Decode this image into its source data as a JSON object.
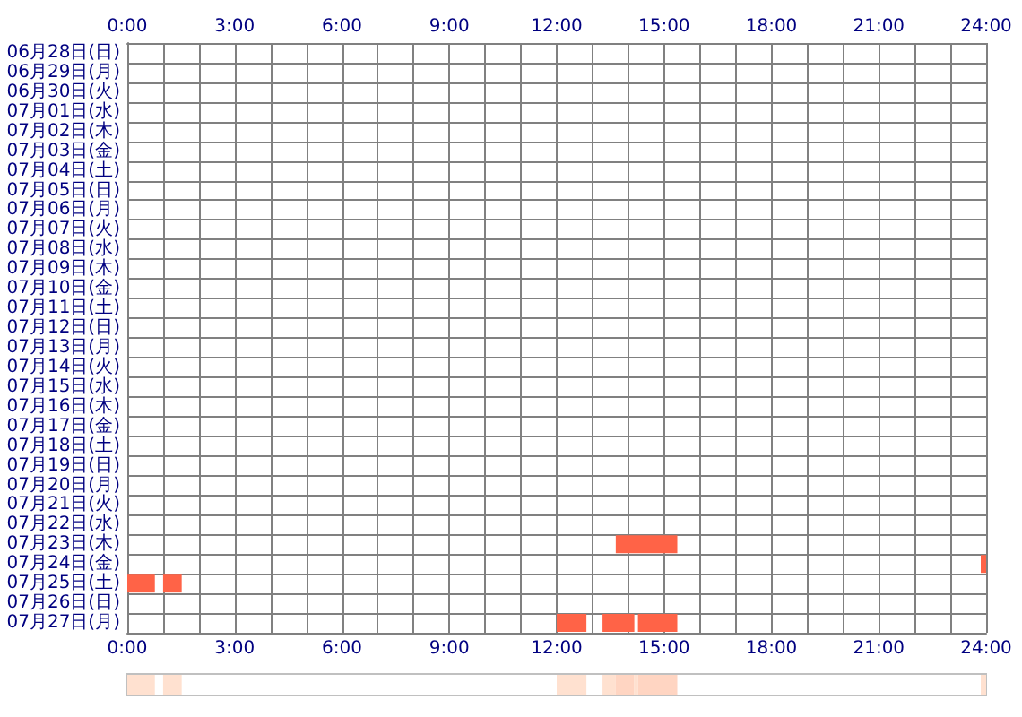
{
  "chart_data": [
    {
      "type": "bar",
      "orientation": "horizontal",
      "categories": [
        "06月28日(日)",
        "06月29日(月)",
        "06月30日(火)",
        "07月01日(水)",
        "07月02日(木)",
        "07月03日(金)",
        "07月04日(土)",
        "07月05日(日)",
        "07月06日(月)",
        "07月07日(火)",
        "07月08日(水)",
        "07月09日(木)",
        "07月10日(金)",
        "07月11日(土)",
        "07月12日(日)",
        "07月13日(月)",
        "07月14日(火)",
        "07月15日(水)",
        "07月16日(木)",
        "07月17日(金)",
        "07月18日(土)",
        "07月19日(日)",
        "07月20日(月)",
        "07月21日(火)",
        "07月22日(水)",
        "07月23日(木)",
        "07月24日(金)",
        "07月25日(土)",
        "07月26日(日)",
        "07月27日(月)"
      ],
      "series": [
        {
          "color": "#ff6347",
          "base": [
            null,
            null,
            null,
            null,
            null,
            null,
            null,
            null,
            null,
            null,
            null,
            null,
            null,
            null,
            null,
            null,
            null,
            null,
            null,
            null,
            null,
            null,
            null,
            null,
            null,
            13.65,
            23.85,
            0,
            null,
            12
          ],
          "values": [
            null,
            null,
            null,
            null,
            null,
            null,
            null,
            null,
            null,
            null,
            null,
            null,
            null,
            null,
            null,
            null,
            null,
            null,
            null,
            null,
            null,
            null,
            null,
            null,
            null,
            1.72,
            0.15,
            0.77,
            null,
            0.83
          ]
        },
        {
          "color": "#ff6347",
          "base": [
            null,
            null,
            null,
            null,
            null,
            null,
            null,
            null,
            null,
            null,
            null,
            null,
            null,
            null,
            null,
            null,
            null,
            null,
            null,
            null,
            null,
            null,
            null,
            null,
            null,
            null,
            null,
            1,
            null,
            13.28
          ],
          "values": [
            null,
            null,
            null,
            null,
            null,
            null,
            null,
            null,
            null,
            null,
            null,
            null,
            null,
            null,
            null,
            null,
            null,
            null,
            null,
            null,
            null,
            null,
            null,
            null,
            null,
            null,
            null,
            0.52,
            null,
            0.89
          ]
        },
        {
          "color": "#ff6347",
          "base": [
            null,
            null,
            null,
            null,
            null,
            null,
            null,
            null,
            null,
            null,
            null,
            null,
            null,
            null,
            null,
            null,
            null,
            null,
            null,
            null,
            null,
            null,
            null,
            null,
            null,
            null,
            null,
            null,
            null,
            14.27
          ],
          "values": [
            null,
            null,
            null,
            null,
            null,
            null,
            null,
            null,
            null,
            null,
            null,
            null,
            null,
            null,
            null,
            null,
            null,
            null,
            null,
            null,
            null,
            null,
            null,
            null,
            null,
            null,
            null,
            null,
            null,
            1.1
          ]
        }
      ],
      "xlim": [
        0,
        24
      ],
      "xticks": [
        {
          "value": 0,
          "label": "0:00"
        },
        {
          "value": 1,
          "label": null
        },
        {
          "value": 2,
          "label": null
        },
        {
          "value": 3,
          "label": "3:00"
        },
        {
          "value": 4,
          "label": null
        },
        {
          "value": 5,
          "label": null
        },
        {
          "value": 6,
          "label": "6:00"
        },
        {
          "value": 7,
          "label": null
        },
        {
          "value": 8,
          "label": null
        },
        {
          "value": 9,
          "label": "9:00"
        },
        {
          "value": 10,
          "label": null
        },
        {
          "value": 11,
          "label": null
        },
        {
          "value": 12,
          "label": "12:00"
        },
        {
          "value": 13,
          "label": null
        },
        {
          "value": 14,
          "label": null
        },
        {
          "value": 15,
          "label": "15:00"
        },
        {
          "value": 16,
          "label": null
        },
        {
          "value": 17,
          "label": null
        },
        {
          "value": 18,
          "label": "18:00"
        },
        {
          "value": 19,
          "label": null
        },
        {
          "value": 20,
          "label": null
        },
        {
          "value": 21,
          "label": "21:00"
        },
        {
          "value": 22,
          "label": null
        },
        {
          "value": 23,
          "label": null
        },
        {
          "value": 24,
          "label": "24:00"
        }
      ],
      "x2lim": [
        0,
        24
      ],
      "x2ticks": [
        {
          "value": 0,
          "label": "0:00"
        },
        {
          "value": 1,
          "label": null
        },
        {
          "value": 2,
          "label": null
        },
        {
          "value": 3,
          "label": "3:00"
        },
        {
          "value": 4,
          "label": null
        },
        {
          "value": 5,
          "label": null
        },
        {
          "value": 6,
          "label": "6:00"
        },
        {
          "value": 7,
          "label": null
        },
        {
          "value": 8,
          "label": null
        },
        {
          "value": 9,
          "label": "9:00"
        },
        {
          "value": 10,
          "label": null
        },
        {
          "value": 11,
          "label": null
        },
        {
          "value": 12,
          "label": "12:00"
        },
        {
          "value": 13,
          "label": null
        },
        {
          "value": 14,
          "label": null
        },
        {
          "value": 15,
          "label": "15:00"
        },
        {
          "value": 16,
          "label": null
        },
        {
          "value": 17,
          "label": null
        },
        {
          "value": 18,
          "label": "18:00"
        },
        {
          "value": 19,
          "label": null
        },
        {
          "value": 20,
          "label": null
        },
        {
          "value": 21,
          "label": "21:00"
        },
        {
          "value": 22,
          "label": null
        },
        {
          "value": 23,
          "label": null
        },
        {
          "value": 24,
          "label": "24:00"
        }
      ],
      "grid": true
    },
    {
      "type": "bar",
      "orientation": "horizontal",
      "categories": [
        null
      ],
      "series": [
        {
          "color": "#ffe1d0",
          "base": [
            0
          ],
          "values": [
            0.77
          ]
        },
        {
          "color": "#ffe1d0",
          "base": [
            1
          ],
          "values": [
            0.52
          ]
        },
        {
          "color": "#ffe1d0",
          "base": [
            12
          ],
          "values": [
            0.83
          ]
        },
        {
          "color": "#ffe1d0",
          "base": [
            13.28
          ],
          "values": [
            0.37
          ]
        },
        {
          "color": "#ffd5c2",
          "base": [
            13.65
          ],
          "values": [
            0.52
          ]
        },
        {
          "color": "#ffe1d0",
          "base": [
            14.17
          ],
          "values": [
            0.1
          ]
        },
        {
          "color": "#ffd5c2",
          "base": [
            14.27
          ],
          "values": [
            1.1
          ]
        },
        {
          "color": "#ffe1d0",
          "base": [
            23.85
          ],
          "values": [
            0.15
          ]
        }
      ],
      "xlim": [
        0,
        24
      ],
      "tick_labels": false
    }
  ]
}
